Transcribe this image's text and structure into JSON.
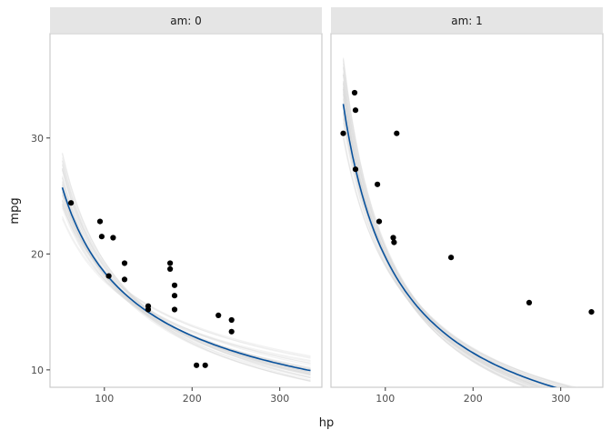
{
  "chart_data": {
    "type": "scatter",
    "xlabel": "hp",
    "ylabel": "mpg",
    "xlim": [
      38,
      348
    ],
    "ylim": [
      8.5,
      39
    ],
    "x_ticks": [
      100,
      200,
      300
    ],
    "y_ticks": [
      10,
      20,
      30
    ],
    "colors": {
      "points": "#000000",
      "fit_line": "#08519c",
      "draws": "#d9d9d9",
      "strip_bg": "#e5e5e5",
      "panel_border": "#cccccc",
      "tick_text": "#4d4d4d"
    },
    "panels": [
      {
        "strip_label": "am: 0",
        "points": [
          {
            "x": 62,
            "y": 24.4
          },
          {
            "x": 95,
            "y": 22.8
          },
          {
            "x": 97,
            "y": 21.5
          },
          {
            "x": 105,
            "y": 18.1
          },
          {
            "x": 110,
            "y": 21.4
          },
          {
            "x": 123,
            "y": 19.2
          },
          {
            "x": 123,
            "y": 17.8
          },
          {
            "x": 150,
            "y": 15.5
          },
          {
            "x": 150,
            "y": 15.2
          },
          {
            "x": 175,
            "y": 18.7
          },
          {
            "x": 175,
            "y": 19.2
          },
          {
            "x": 180,
            "y": 16.4
          },
          {
            "x": 180,
            "y": 17.3
          },
          {
            "x": 180,
            "y": 15.2
          },
          {
            "x": 205,
            "y": 10.4
          },
          {
            "x": 215,
            "y": 10.4
          },
          {
            "x": 230,
            "y": 14.7
          },
          {
            "x": 245,
            "y": 14.3
          },
          {
            "x": 245,
            "y": 13.3
          }
        ],
        "fit": {
          "x_range": [
            52,
            335
          ],
          "a": 193.6,
          "b": -0.5107
        }
      },
      {
        "strip_label": "am: 1",
        "points": [
          {
            "x": 52,
            "y": 30.4
          },
          {
            "x": 65,
            "y": 33.9
          },
          {
            "x": 66,
            "y": 32.4
          },
          {
            "x": 66,
            "y": 27.3
          },
          {
            "x": 91,
            "y": 26.0
          },
          {
            "x": 93,
            "y": 22.8
          },
          {
            "x": 109,
            "y": 21.4
          },
          {
            "x": 110,
            "y": 21.0
          },
          {
            "x": 113,
            "y": 30.4
          },
          {
            "x": 175,
            "y": 19.7
          },
          {
            "x": 264,
            "y": 15.8
          },
          {
            "x": 335,
            "y": 15.0
          }
        ],
        "fit": {
          "x_range": [
            52,
            335
          ],
          "a": 728.0,
          "b": -0.7835
        }
      }
    ]
  }
}
